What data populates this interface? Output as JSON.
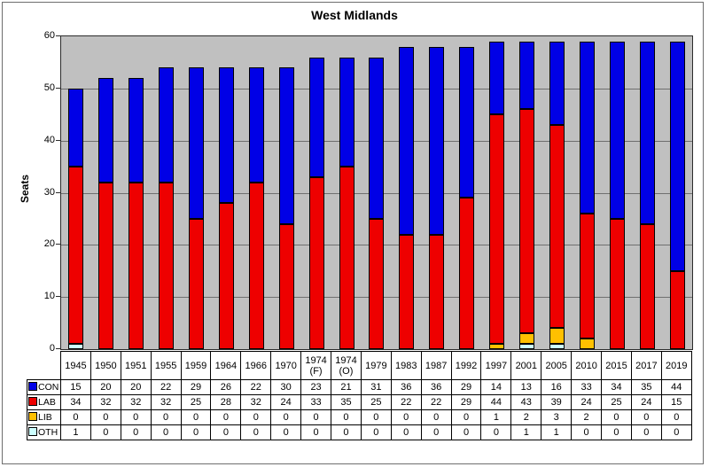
{
  "chart_data": {
    "type": "bar",
    "stacked": true,
    "title": "West Midlands",
    "ylabel": "Seats",
    "ylim": [
      0,
      60
    ],
    "ytick_interval": 10,
    "ytick_labels": [
      "60",
      "50",
      "40",
      "30",
      "20",
      "10",
      "0"
    ],
    "grid": true,
    "plot_bg": "#c0c0c0",
    "legend_position": "table-left",
    "categories": [
      "1945",
      "1950",
      "1951",
      "1955",
      "1959",
      "1964",
      "1966",
      "1970",
      "1974 (F)",
      "1974 (O)",
      "1979",
      "1983",
      "1987",
      "1992",
      "1997",
      "2001",
      "2005",
      "2010",
      "2015",
      "2017",
      "2019"
    ],
    "series": [
      {
        "name": "CON",
        "color": "#0000e6",
        "values": [
          15,
          20,
          20,
          22,
          29,
          26,
          22,
          30,
          23,
          21,
          31,
          36,
          36,
          29,
          14,
          13,
          16,
          33,
          34,
          35,
          44
        ]
      },
      {
        "name": "LAB",
        "color": "#ee0000",
        "values": [
          34,
          32,
          32,
          32,
          25,
          28,
          32,
          24,
          33,
          35,
          25,
          22,
          22,
          29,
          44,
          43,
          39,
          24,
          25,
          24,
          15
        ]
      },
      {
        "name": "LIB",
        "color": "#ffc000",
        "values": [
          0,
          0,
          0,
          0,
          0,
          0,
          0,
          0,
          0,
          0,
          0,
          0,
          0,
          0,
          1,
          2,
          3,
          2,
          0,
          0,
          0
        ]
      },
      {
        "name": "OTH",
        "color": "#ccffff",
        "values": [
          1,
          0,
          0,
          0,
          0,
          0,
          0,
          0,
          0,
          0,
          0,
          0,
          0,
          0,
          0,
          1,
          1,
          0,
          0,
          0,
          0
        ]
      }
    ],
    "stack_order_bottom_to_top": [
      "OTH",
      "LIB",
      "LAB",
      "CON"
    ]
  }
}
